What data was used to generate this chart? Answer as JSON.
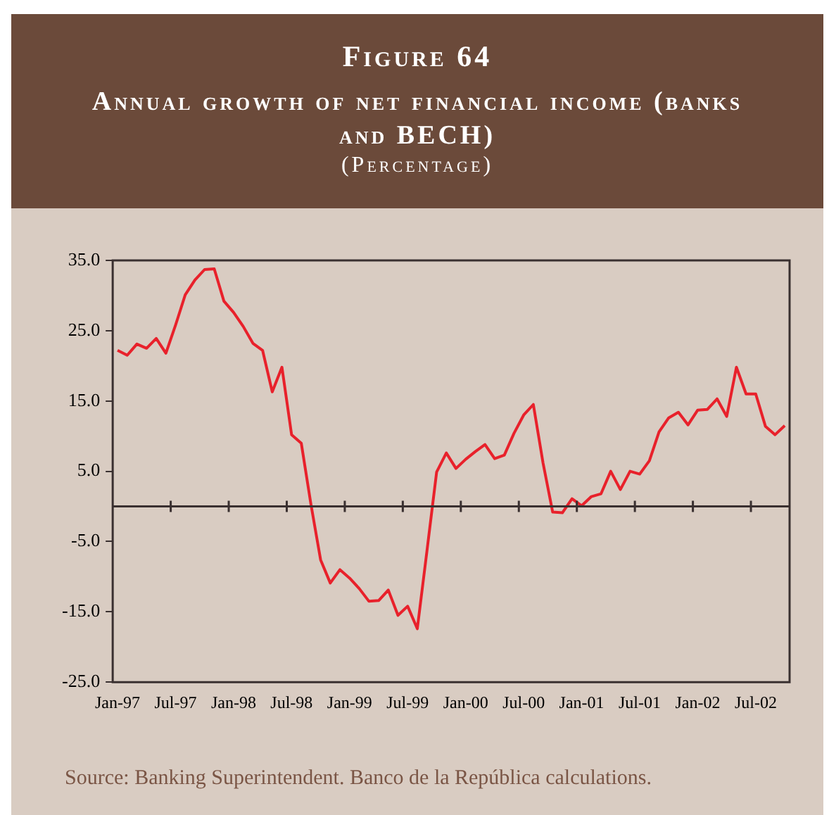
{
  "chart_data": {
    "type": "line",
    "title": "Figure 64",
    "subtitle": "Annual growth of net financial income (banks and BECH)",
    "ylabel": "(Percentage)",
    "categories": [
      "Jan-97",
      null,
      null,
      null,
      null,
      null,
      "Jul-97",
      null,
      null,
      null,
      null,
      null,
      "Jan-98",
      null,
      null,
      null,
      null,
      null,
      "Jul-98",
      null,
      null,
      null,
      null,
      null,
      "Jan-99",
      null,
      null,
      null,
      null,
      null,
      "Jul-99",
      null,
      null,
      null,
      null,
      null,
      "Jan-00",
      null,
      null,
      null,
      null,
      null,
      "Jul-00",
      null,
      null,
      null,
      null,
      null,
      "Jan-01",
      null,
      null,
      null,
      null,
      null,
      "Jul-01",
      null,
      null,
      null,
      null,
      null,
      "Jan-02",
      null,
      null,
      null,
      null,
      null,
      "Jul-02",
      null,
      null,
      null
    ],
    "series": [
      {
        "color": "#e8212b",
        "values": [
          22.2,
          21.5,
          23.1,
          22.5,
          23.9,
          21.8,
          25.8,
          30.1,
          32.2,
          33.7,
          33.8,
          29.2,
          27.6,
          25.6,
          23.2,
          22.2,
          16.3,
          19.8,
          10.2,
          9.0,
          0.3,
          -7.6,
          -10.9,
          -9.0,
          -10.2,
          -11.7,
          -13.5,
          -13.4,
          -11.9,
          -15.5,
          -14.2,
          -17.4,
          -6.3,
          4.9,
          7.6,
          5.4,
          6.7,
          7.8,
          8.8,
          6.8,
          7.3,
          10.4,
          13.0,
          14.5,
          6.2,
          -0.8,
          -0.9,
          1.1,
          0.1,
          1.4,
          1.8,
          5.0,
          2.4,
          5.0,
          4.6,
          6.5,
          10.6,
          12.6,
          13.4,
          11.6,
          13.7,
          13.8,
          15.3,
          12.8,
          19.8,
          16.0,
          16.0,
          11.4,
          10.2,
          11.5
        ]
      }
    ],
    "ylim": [
      -25,
      35
    ],
    "yticks": [
      {
        "value": 35,
        "label": "35.0"
      },
      {
        "value": 25,
        "label": "25.0"
      },
      {
        "value": 15,
        "label": "15.0"
      },
      {
        "value": 5,
        "label": "5.0"
      },
      {
        "value": -5,
        "label": "-5.0"
      },
      {
        "value": -15,
        "label": "-15.0"
      },
      {
        "value": -25,
        "label": "-25.0"
      }
    ],
    "grid": false,
    "legend": false,
    "annotations": [
      "Source: Banking Superintendent. Banco de la República calculations."
    ]
  }
}
